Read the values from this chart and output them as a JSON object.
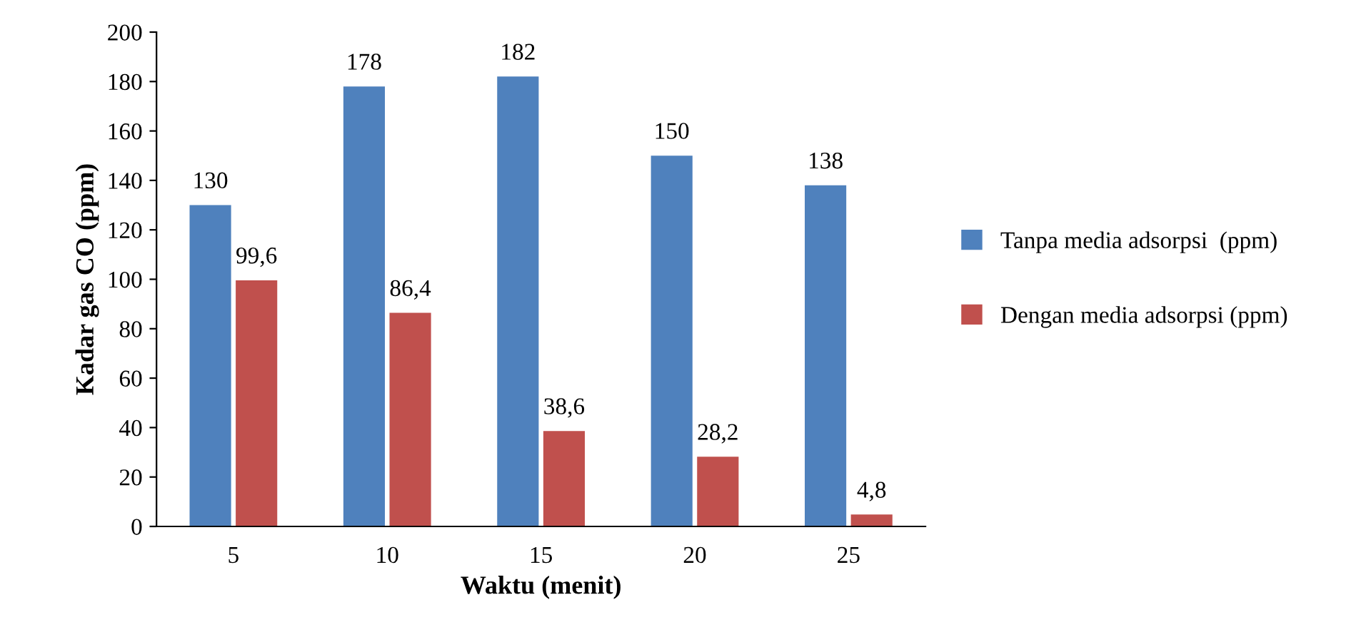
{
  "chart_data": {
    "type": "bar",
    "xlabel": "Waktu (menit)",
    "ylabel": "Kadar gas CO (ppm)",
    "categories": [
      "5",
      "10",
      "15",
      "20",
      "25"
    ],
    "series": [
      {
        "name": "Tanpa media adsorpsi  (ppm)",
        "color": "#4f81bd",
        "values": [
          130,
          178,
          182,
          150,
          138
        ],
        "value_labels": [
          "130",
          "178",
          "182",
          "150",
          "138"
        ]
      },
      {
        "name": "Dengan media adsorpsi (ppm)",
        "color": "#c0504d",
        "values": [
          99.6,
          86.4,
          38.6,
          28.2,
          4.8
        ],
        "value_labels": [
          "99,6",
          "86,4",
          "38,6",
          "28,2",
          "4,8"
        ]
      }
    ],
    "ylim": [
      0,
      200
    ],
    "yticks": [
      0,
      20,
      40,
      60,
      80,
      100,
      120,
      140,
      160,
      180,
      200
    ],
    "grid": false,
    "legend": "right"
  }
}
